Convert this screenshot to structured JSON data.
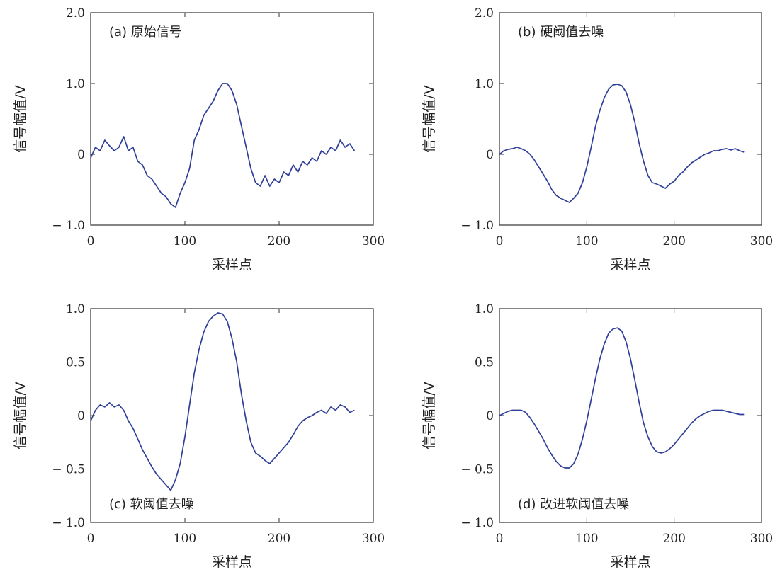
{
  "chart_data": [
    {
      "type": "line",
      "title": "(a) 原始信号",
      "xlabel": "采样点",
      "ylabel": "信号幅值/V",
      "xlim": [
        0,
        300
      ],
      "ylim": [
        -1.0,
        2.0
      ],
      "xticks": [
        "0",
        "100",
        "200",
        "300"
      ],
      "yticks": [
        {
          "value": 2.0,
          "label": "2.0"
        },
        {
          "value": 1.0,
          "label": "1.0"
        },
        {
          "value": 0,
          "label": "0"
        },
        {
          "value": -1.0,
          "label": "− 1.0"
        }
      ],
      "label_position": "top-left",
      "series": [
        {
          "color": "#2f3f98",
          "x": [
            0,
            5,
            10,
            15,
            20,
            25,
            30,
            35,
            40,
            45,
            50,
            55,
            60,
            65,
            70,
            75,
            80,
            85,
            90,
            95,
            100,
            105,
            110,
            115,
            120,
            125,
            130,
            135,
            140,
            145,
            150,
            155,
            160,
            165,
            170,
            175,
            180,
            185,
            190,
            195,
            200,
            205,
            210,
            215,
            220,
            225,
            230,
            235,
            240,
            245,
            250,
            255,
            260,
            265,
            270,
            275,
            280
          ],
          "y": [
            -0.05,
            0.1,
            0.05,
            0.2,
            0.12,
            0.05,
            0.1,
            0.25,
            0.05,
            0.1,
            -0.1,
            -0.15,
            -0.3,
            -0.35,
            -0.45,
            -0.55,
            -0.6,
            -0.7,
            -0.75,
            -0.55,
            -0.4,
            -0.2,
            0.2,
            0.35,
            0.55,
            0.65,
            0.75,
            0.9,
            1.0,
            1.0,
            0.9,
            0.7,
            0.4,
            0.1,
            -0.2,
            -0.4,
            -0.45,
            -0.3,
            -0.45,
            -0.35,
            -0.4,
            -0.25,
            -0.3,
            -0.15,
            -0.25,
            -0.1,
            -0.15,
            -0.05,
            -0.1,
            0.05,
            0.0,
            0.1,
            0.05,
            0.2,
            0.1,
            0.15,
            0.05
          ]
        }
      ]
    },
    {
      "type": "line",
      "title": "(b) 硬阈值去噪",
      "xlabel": "采样点",
      "ylabel": "信号幅值/V",
      "xlim": [
        0,
        300
      ],
      "ylim": [
        -1.0,
        2.0
      ],
      "xticks": [
        "0",
        "100",
        "200",
        "300"
      ],
      "yticks": [
        {
          "value": 2.0,
          "label": "2.0"
        },
        {
          "value": 1.0,
          "label": "1.0"
        },
        {
          "value": 0,
          "label": "0"
        },
        {
          "value": -1.0,
          "label": "− 1.0"
        }
      ],
      "label_position": "top-left",
      "series": [
        {
          "color": "#2f3f98",
          "x": [
            0,
            5,
            10,
            15,
            20,
            25,
            30,
            35,
            40,
            45,
            50,
            55,
            60,
            65,
            70,
            75,
            80,
            85,
            90,
            95,
            100,
            105,
            110,
            115,
            120,
            125,
            130,
            135,
            140,
            145,
            150,
            155,
            160,
            165,
            170,
            175,
            180,
            185,
            190,
            195,
            200,
            205,
            210,
            215,
            220,
            225,
            230,
            235,
            240,
            245,
            250,
            255,
            260,
            265,
            270,
            275,
            280
          ],
          "y": [
            0.0,
            0.05,
            0.07,
            0.08,
            0.1,
            0.08,
            0.05,
            0.0,
            -0.08,
            -0.18,
            -0.28,
            -0.38,
            -0.5,
            -0.58,
            -0.62,
            -0.65,
            -0.68,
            -0.62,
            -0.55,
            -0.4,
            -0.18,
            0.1,
            0.4,
            0.62,
            0.8,
            0.92,
            0.98,
            0.99,
            0.97,
            0.88,
            0.7,
            0.45,
            0.15,
            -0.1,
            -0.3,
            -0.4,
            -0.42,
            -0.45,
            -0.48,
            -0.42,
            -0.38,
            -0.3,
            -0.25,
            -0.18,
            -0.12,
            -0.08,
            -0.04,
            0.0,
            0.02,
            0.05,
            0.05,
            0.07,
            0.08,
            0.06,
            0.08,
            0.05,
            0.03
          ]
        }
      ]
    },
    {
      "type": "line",
      "title": "(c) 软阈值去噪",
      "xlabel": "采样点",
      "ylabel": "信号幅值/V",
      "xlim": [
        0,
        300
      ],
      "ylim": [
        -1.0,
        1.0
      ],
      "xticks": [
        "0",
        "100",
        "200",
        "300"
      ],
      "yticks": [
        {
          "value": 1.0,
          "label": "1.0"
        },
        {
          "value": 0.5,
          "label": "0.5"
        },
        {
          "value": 0,
          "label": "0"
        },
        {
          "value": -0.5,
          "label": "− 0.5"
        },
        {
          "value": -1.0,
          "label": "− 1.0"
        }
      ],
      "label_position": "bottom-left",
      "series": [
        {
          "color": "#2f3f98",
          "x": [
            0,
            5,
            10,
            15,
            20,
            25,
            30,
            35,
            40,
            45,
            50,
            55,
            60,
            65,
            70,
            75,
            80,
            85,
            90,
            95,
            100,
            105,
            110,
            115,
            120,
            125,
            130,
            135,
            140,
            145,
            150,
            155,
            160,
            165,
            170,
            175,
            180,
            185,
            190,
            195,
            200,
            205,
            210,
            215,
            220,
            225,
            230,
            235,
            240,
            245,
            250,
            255,
            260,
            265,
            270,
            275,
            280
          ],
          "y": [
            -0.05,
            0.05,
            0.1,
            0.08,
            0.12,
            0.08,
            0.1,
            0.05,
            -0.05,
            -0.12,
            -0.22,
            -0.32,
            -0.4,
            -0.48,
            -0.55,
            -0.6,
            -0.65,
            -0.7,
            -0.6,
            -0.45,
            -0.2,
            0.1,
            0.4,
            0.62,
            0.78,
            0.88,
            0.93,
            0.96,
            0.95,
            0.88,
            0.72,
            0.5,
            0.2,
            -0.05,
            -0.25,
            -0.35,
            -0.38,
            -0.42,
            -0.45,
            -0.4,
            -0.35,
            -0.3,
            -0.25,
            -0.18,
            -0.1,
            -0.05,
            -0.02,
            0.0,
            0.03,
            0.05,
            0.02,
            0.08,
            0.05,
            0.1,
            0.08,
            0.03,
            0.05
          ]
        }
      ]
    },
    {
      "type": "line",
      "title": "(d) 改进软阈值去噪",
      "xlabel": "采样点",
      "ylabel": "信号幅值/V",
      "xlim": [
        0,
        300
      ],
      "ylim": [
        -1.0,
        1.0
      ],
      "xticks": [
        "0",
        "100",
        "200",
        "300"
      ],
      "yticks": [
        {
          "value": 1.0,
          "label": "1.0"
        },
        {
          "value": 0.5,
          "label": "0.5"
        },
        {
          "value": 0,
          "label": "0"
        },
        {
          "value": -0.5,
          "label": "− 0.5"
        },
        {
          "value": -1.0,
          "label": "− 1.0"
        }
      ],
      "label_position": "bottom-left",
      "series": [
        {
          "color": "#2f3f98",
          "x": [
            0,
            5,
            10,
            15,
            20,
            25,
            30,
            35,
            40,
            45,
            50,
            55,
            60,
            65,
            70,
            75,
            80,
            85,
            90,
            95,
            100,
            105,
            110,
            115,
            120,
            125,
            130,
            135,
            140,
            145,
            150,
            155,
            160,
            165,
            170,
            175,
            180,
            185,
            190,
            195,
            200,
            205,
            210,
            215,
            220,
            225,
            230,
            235,
            240,
            245,
            250,
            255,
            260,
            265,
            270,
            275,
            280
          ],
          "y": [
            0.0,
            0.02,
            0.04,
            0.05,
            0.05,
            0.05,
            0.03,
            -0.02,
            -0.08,
            -0.15,
            -0.22,
            -0.3,
            -0.37,
            -0.43,
            -0.47,
            -0.49,
            -0.49,
            -0.45,
            -0.36,
            -0.22,
            -0.05,
            0.15,
            0.35,
            0.53,
            0.67,
            0.77,
            0.81,
            0.82,
            0.79,
            0.69,
            0.53,
            0.33,
            0.12,
            -0.07,
            -0.2,
            -0.29,
            -0.34,
            -0.35,
            -0.34,
            -0.31,
            -0.27,
            -0.22,
            -0.17,
            -0.12,
            -0.07,
            -0.03,
            0.0,
            0.02,
            0.04,
            0.05,
            0.05,
            0.05,
            0.04,
            0.03,
            0.02,
            0.01,
            0.01
          ]
        }
      ]
    }
  ]
}
